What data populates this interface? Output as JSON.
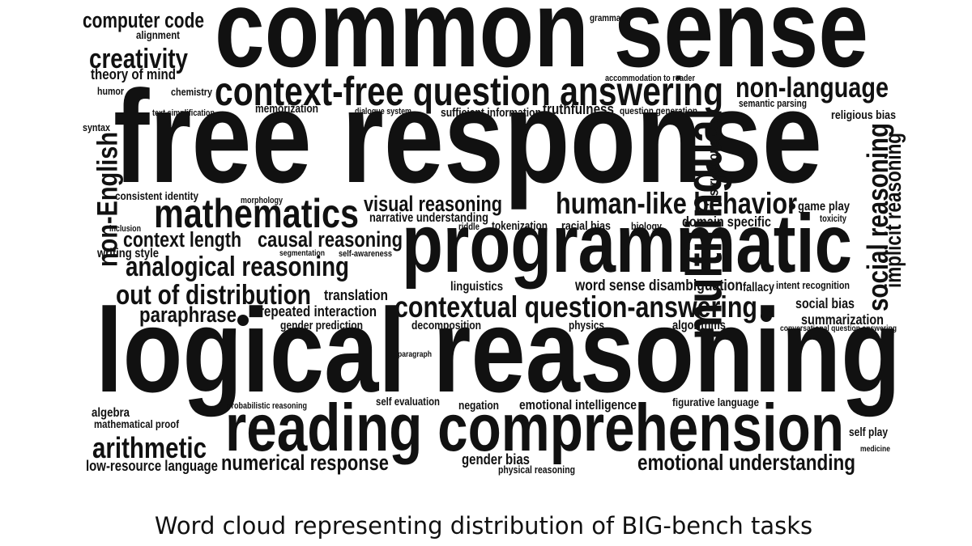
{
  "caption": "Word cloud representing distribution of BIG-bench tasks",
  "words": [
    {
      "text": "computer code"
    },
    {
      "text": "alignment"
    },
    {
      "text": "grammar"
    },
    {
      "text": "common sense"
    },
    {
      "text": "creativity"
    },
    {
      "text": "theory of mind"
    },
    {
      "text": "accommodation to reader"
    },
    {
      "text": "humor"
    },
    {
      "text": "chemistry"
    },
    {
      "text": "context-free question answering"
    },
    {
      "text": "non-language"
    },
    {
      "text": "semantic parsing"
    },
    {
      "text": "text simplification"
    },
    {
      "text": "memorization"
    },
    {
      "text": "dialogue system"
    },
    {
      "text": "sufficient information"
    },
    {
      "text": "truthfulness"
    },
    {
      "text": "question generation"
    },
    {
      "text": "religious bias"
    },
    {
      "text": "syntax"
    },
    {
      "text": "free response"
    },
    {
      "text": "multilingual"
    },
    {
      "text": "instructions"
    },
    {
      "text": "social reasoning"
    },
    {
      "text": "implicit reasoning"
    },
    {
      "text": "non-English"
    },
    {
      "text": "consistent identity"
    },
    {
      "text": "morphology"
    },
    {
      "text": "visual reasoning"
    },
    {
      "text": "human-like behavior"
    },
    {
      "text": "game play"
    },
    {
      "text": "toxicity"
    },
    {
      "text": "mathematics"
    },
    {
      "text": "narrative understanding"
    },
    {
      "text": "riddle"
    },
    {
      "text": "tokenization"
    },
    {
      "text": "racial bias"
    },
    {
      "text": "biology"
    },
    {
      "text": "domain specific"
    },
    {
      "text": "inclusion"
    },
    {
      "text": "context length"
    },
    {
      "text": "causal reasoning"
    },
    {
      "text": "writing style"
    },
    {
      "text": "segmentation"
    },
    {
      "text": "self-awareness"
    },
    {
      "text": "programmatic"
    },
    {
      "text": "analogical reasoning"
    },
    {
      "text": "linguistics"
    },
    {
      "text": "word sense disambiguation"
    },
    {
      "text": "fallacy"
    },
    {
      "text": "intent recognition"
    },
    {
      "text": "out of distribution"
    },
    {
      "text": "translation"
    },
    {
      "text": "social bias"
    },
    {
      "text": "paraphrase"
    },
    {
      "text": "repeated interaction"
    },
    {
      "text": "contextual question-answering"
    },
    {
      "text": "summarization"
    },
    {
      "text": "gender prediction"
    },
    {
      "text": "decomposition"
    },
    {
      "text": "physics"
    },
    {
      "text": "algorithms"
    },
    {
      "text": "conversational question answering"
    },
    {
      "text": "paragraph"
    },
    {
      "text": "logical reasoning"
    },
    {
      "text": "algebra"
    },
    {
      "text": "probabilistic reasoning"
    },
    {
      "text": "self evaluation"
    },
    {
      "text": "negation"
    },
    {
      "text": "emotional intelligence"
    },
    {
      "text": "figurative language"
    },
    {
      "text": "mathematical proof"
    },
    {
      "text": "reading comprehension"
    },
    {
      "text": "self play"
    },
    {
      "text": "arithmetic"
    },
    {
      "text": "medicine"
    },
    {
      "text": "low-resource language"
    },
    {
      "text": "numerical response"
    },
    {
      "text": "gender bias"
    },
    {
      "text": "physical reasoning"
    },
    {
      "text": "emotional understanding"
    }
  ]
}
